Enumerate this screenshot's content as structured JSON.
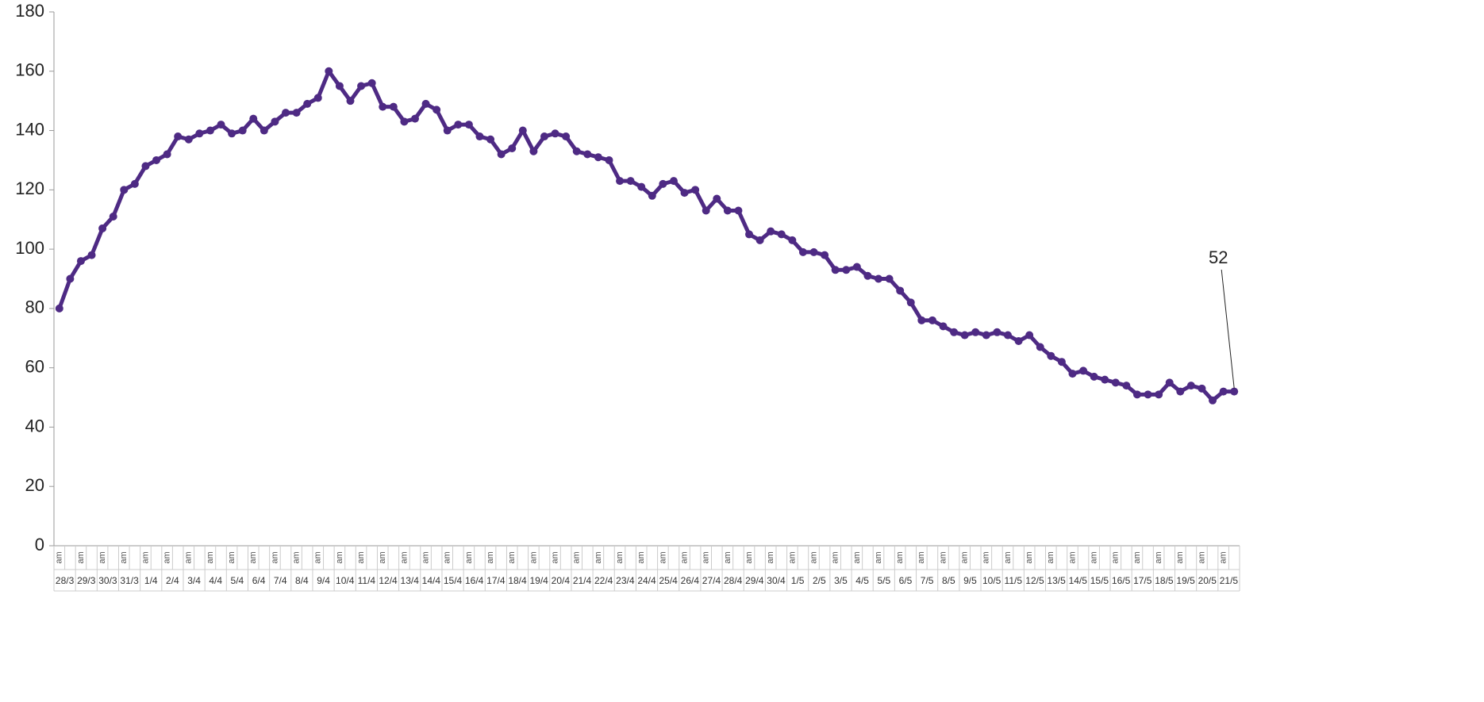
{
  "chart_data": {
    "type": "line",
    "categories": [
      "am",
      null,
      "am",
      null,
      "am",
      null,
      "am",
      null,
      "am",
      null,
      "am",
      null,
      "am",
      null,
      "am",
      null,
      "am",
      null,
      "am",
      null,
      "am",
      null,
      "am",
      null,
      "am",
      null,
      "am",
      null,
      "am",
      null,
      "am",
      null,
      "am",
      null,
      "am",
      null,
      "am",
      null,
      "am",
      null,
      "am",
      null,
      "am",
      null,
      "am",
      null,
      "am",
      null,
      "am",
      null,
      "am",
      null,
      "am",
      null,
      "am",
      null,
      "am",
      null,
      "am",
      null,
      "am",
      null,
      "am",
      null,
      "am",
      null,
      "am",
      null,
      "am",
      null,
      "am",
      null,
      "am",
      null,
      "am",
      null,
      "am",
      null,
      "am",
      null,
      "am",
      null,
      "am",
      null,
      "am",
      null,
      "am",
      null,
      "am",
      null,
      "am",
      null,
      "am",
      null,
      "am",
      null,
      "am",
      null,
      "am",
      null,
      "am",
      null,
      "am",
      null,
      "am",
      null,
      "am",
      null,
      "am",
      null
    ],
    "groups": [
      "28/3",
      "29/3",
      "30/3",
      "31/3",
      "1/4",
      "2/4",
      "3/4",
      "4/4",
      "5/4",
      "6/4",
      "7/4",
      "8/4",
      "9/4",
      "10/4",
      "11/4",
      "12/4",
      "13/4",
      "14/4",
      "15/4",
      "16/4",
      "17/4",
      "18/4",
      "19/4",
      "20/4",
      "21/4",
      "22/4",
      "23/4",
      "24/4",
      "25/4",
      "26/4",
      "27/4",
      "28/4",
      "29/4",
      "30/4",
      "1/5",
      "2/5",
      "3/5",
      "4/5",
      "5/5",
      "6/5",
      "7/5",
      "8/5",
      "9/5",
      "10/5",
      "11/5",
      "12/5",
      "13/5",
      "14/5",
      "15/5",
      "16/5",
      "17/5",
      "18/5",
      "19/5",
      "20/5",
      "21/5"
    ],
    "values": [
      80,
      90,
      96,
      98,
      107,
      111,
      120,
      122,
      128,
      130,
      132,
      138,
      137,
      139,
      140,
      142,
      139,
      140,
      144,
      140,
      143,
      146,
      146,
      149,
      151,
      160,
      155,
      150,
      155,
      156,
      148,
      148,
      143,
      144,
      149,
      147,
      140,
      142,
      142,
      138,
      137,
      132,
      134,
      140,
      133,
      138,
      139,
      138,
      133,
      132,
      131,
      130,
      123,
      123,
      121,
      118,
      122,
      123,
      119,
      120,
      113,
      117,
      113,
      113,
      105,
      103,
      106,
      105,
      103,
      99,
      99,
      98,
      93,
      93,
      94,
      91,
      90,
      90,
      86,
      82,
      76,
      76,
      74,
      72,
      71,
      72,
      71,
      72,
      71,
      69,
      71,
      67,
      64,
      62,
      58,
      59,
      57,
      56,
      55,
      54,
      51,
      51,
      51,
      55,
      52,
      54,
      53,
      49,
      52,
      52
    ],
    "color": "#4e2a84",
    "annotation": "52",
    "ylim": [
      0,
      180
    ],
    "yticks": [
      0,
      20,
      40,
      60,
      80,
      100,
      120,
      140,
      160,
      180
    ],
    "grid": false
  }
}
